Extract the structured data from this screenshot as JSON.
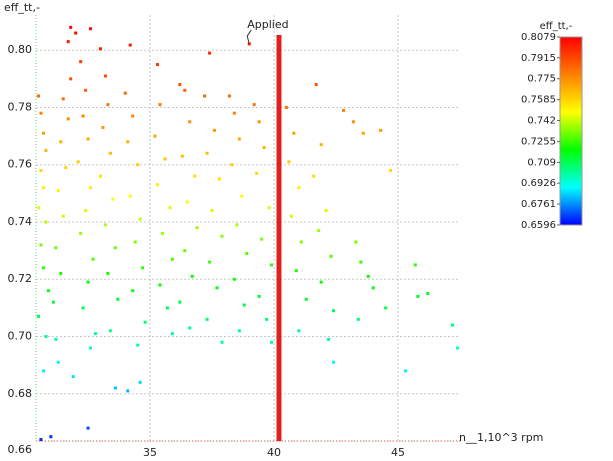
{
  "chart_data": {
    "type": "scatter",
    "xlabel": "n__1,10^3 rpm",
    "ylabel": "eff_tt,-",
    "xlim": [
      30.4,
      47.5
    ],
    "ylim": [
      0.6635,
      0.8123
    ],
    "xticks": [
      35,
      40,
      45
    ],
    "yticks": [
      {
        "value": 0.6635,
        "label": "0.66"
      },
      0.68,
      {
        "value": 0.7,
        "label": "0.70"
      },
      0.72,
      0.74,
      0.76,
      0.78,
      {
        "value": 0.8,
        "label": "0.80"
      }
    ],
    "grid": true,
    "colormap": [
      "#0000ff",
      "#00ffff",
      "#00ff00",
      "#ffff00",
      "#ff8000",
      "#ff0000"
    ],
    "clim": [
      0.6596,
      0.8079
    ],
    "colorbar": {
      "title": "eff_tt,-",
      "ticks": [
        0.8079,
        0.7915,
        0.775,
        0.7585,
        0.742,
        0.7255,
        0.709,
        0.6926,
        0.6761,
        0.6596
      ]
    },
    "vline": {
      "x": 40.2,
      "color": "#e02020"
    },
    "annotation": {
      "text": "Applied",
      "x": 39.0,
      "y": 0.8022
    },
    "x": [
      30.5,
      30.6,
      30.7,
      30.8,
      30.6,
      30.7,
      30.5,
      30.8,
      30.6,
      30.7,
      30.9,
      30.5,
      30.8,
      30.7,
      30.6,
      31.0,
      31.3,
      31.2,
      31.1,
      31.4,
      31.2,
      31.5,
      31.3,
      31.6,
      31.4,
      31.7,
      31.5,
      31.8,
      31.7,
      31.8,
      32.0,
      32.6,
      32.2,
      32.4,
      32.3,
      32.5,
      32.1,
      32.6,
      32.4,
      32.2,
      32.7,
      32.5,
      32.3,
      32.8,
      32.6,
      32.5,
      31.9,
      33.0,
      33.2,
      33.3,
      33.1,
      33.4,
      33.0,
      33.5,
      33.2,
      33.6,
      33.3,
      33.7,
      33.4,
      33.6,
      34.1,
      34.2,
      34.0,
      34.3,
      34.1,
      34.5,
      34.2,
      34.6,
      34.4,
      34.7,
      34.3,
      34.8,
      34.5,
      34.6,
      35.3,
      35.4,
      35.2,
      35.6,
      35.3,
      35.8,
      35.5,
      35.9,
      35.4,
      35.7,
      35.9,
      36.2,
      36.4,
      36.6,
      36.3,
      36.8,
      36.5,
      36.9,
      36.4,
      36.7,
      36.2,
      36.6,
      37.2,
      37.4,
      37.6,
      37.3,
      37.8,
      37.5,
      37.9,
      37.4,
      37.7,
      37.3,
      37.9,
      38.2,
      38.4,
      38.6,
      38.3,
      38.7,
      38.5,
      38.9,
      38.4,
      38.8,
      38.6,
      39.0,
      39.2,
      39.4,
      39.6,
      39.3,
      39.8,
      39.5,
      39.9,
      39.4,
      39.7,
      39.9,
      40.5,
      40.8,
      40.6,
      41.0,
      40.7,
      41.1,
      40.9,
      41.3,
      41.0,
      41.7,
      41.9,
      41.6,
      42.1,
      41.8,
      42.3,
      41.9,
      42.4,
      42.2,
      42.4,
      42.8,
      43.2,
      43.6,
      44.3,
      43.3,
      43.5,
      43.8,
      44.0,
      44.7,
      45.7,
      45.8,
      46.2,
      45.3,
      47.2,
      47.4,
      44.5,
      43.4
    ],
    "values": [
      0.784,
      0.778,
      0.771,
      0.765,
      0.758,
      0.752,
      0.745,
      0.74,
      0.732,
      0.724,
      0.716,
      0.707,
      0.7,
      0.688,
      0.664,
      0.665,
      0.691,
      0.699,
      0.712,
      0.722,
      0.731,
      0.742,
      0.751,
      0.759,
      0.768,
      0.776,
      0.783,
      0.79,
      0.803,
      0.808,
      0.806,
      0.8075,
      0.796,
      0.786,
      0.777,
      0.769,
      0.761,
      0.752,
      0.744,
      0.736,
      0.727,
      0.719,
      0.71,
      0.701,
      0.696,
      0.668,
      0.686,
      0.8005,
      0.791,
      0.781,
      0.773,
      0.764,
      0.756,
      0.748,
      0.739,
      0.731,
      0.722,
      0.713,
      0.702,
      0.682,
      0.681,
      0.8018,
      0.785,
      0.777,
      0.768,
      0.76,
      0.749,
      0.741,
      0.733,
      0.724,
      0.716,
      0.705,
      0.697,
      0.684,
      0.795,
      0.781,
      0.77,
      0.762,
      0.753,
      0.745,
      0.736,
      0.727,
      0.718,
      0.71,
      0.701,
      0.788,
      0.786,
      0.775,
      0.763,
      0.756,
      0.747,
      0.738,
      0.73,
      0.721,
      0.712,
      0.703,
      0.784,
      0.799,
      0.772,
      0.764,
      0.755,
      0.744,
      0.735,
      0.726,
      0.717,
      0.706,
      0.698,
      0.784,
      0.778,
      0.769,
      0.76,
      0.749,
      0.739,
      0.729,
      0.72,
      0.711,
      0.702,
      0.8022,
      0.781,
      0.775,
      0.766,
      0.757,
      0.745,
      0.734,
      0.725,
      0.714,
      0.706,
      0.698,
      0.78,
      0.771,
      0.761,
      0.752,
      0.742,
      0.733,
      0.723,
      0.713,
      0.702,
      0.788,
      0.767,
      0.756,
      0.744,
      0.737,
      0.728,
      0.719,
      0.709,
      0.699,
      0.691,
      0.779,
      0.775,
      0.771,
      0.772,
      0.733,
      0.726,
      0.721,
      0.717,
      0.758,
      0.725,
      0.714,
      0.715,
      0.688,
      0.704,
      0.696,
      0.71,
      0.706
    ]
  }
}
